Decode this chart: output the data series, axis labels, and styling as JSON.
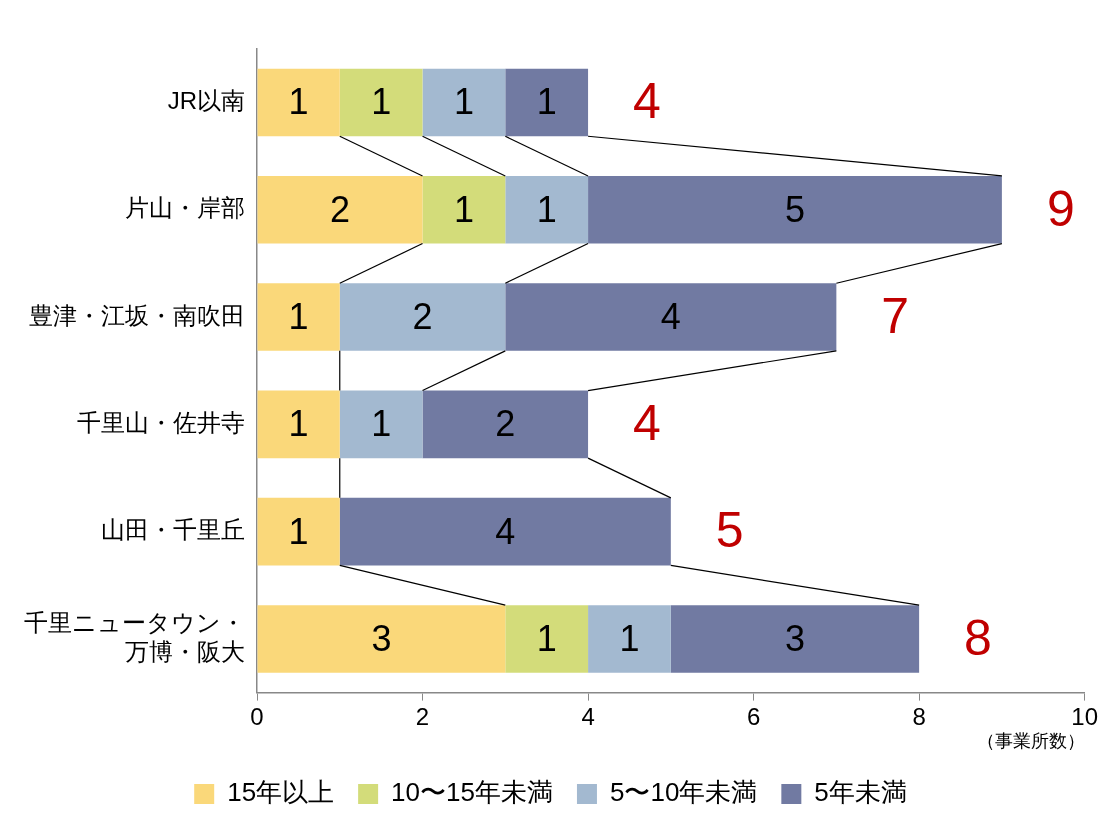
{
  "chart_data": {
    "type": "bar",
    "orientation": "horizontal",
    "stacked": true,
    "xlabel": "（事業所数）",
    "categories": [
      "JR以南",
      "片山・岸部",
      "豊津・江坂・南吹田",
      "千里山・佐井寺",
      "山田・千里丘",
      "千里ニュータウン・万博・阪大"
    ],
    "series": [
      {
        "name": "15年以上",
        "color": "#fad87a",
        "values": [
          1,
          2,
          1,
          1,
          1,
          3
        ]
      },
      {
        "name": "10〜15年未満",
        "color": "#d3dc7a",
        "values": [
          1,
          1,
          null,
          null,
          null,
          1
        ]
      },
      {
        "name": "5〜10年未満",
        "color": "#a3b9d0",
        "values": [
          1,
          1,
          2,
          1,
          null,
          1
        ]
      },
      {
        "name": "5年未満",
        "color": "#717aa2",
        "values": [
          1,
          5,
          4,
          2,
          4,
          3
        ]
      }
    ],
    "totals": [
      "4",
      "9",
      "7",
      "4",
      "5",
      "8"
    ],
    "xlim": [
      0,
      10
    ],
    "xticks": [
      0,
      2,
      4,
      6,
      8,
      10
    ],
    "grid": false,
    "legend": "bottom",
    "data_labels": true
  }
}
